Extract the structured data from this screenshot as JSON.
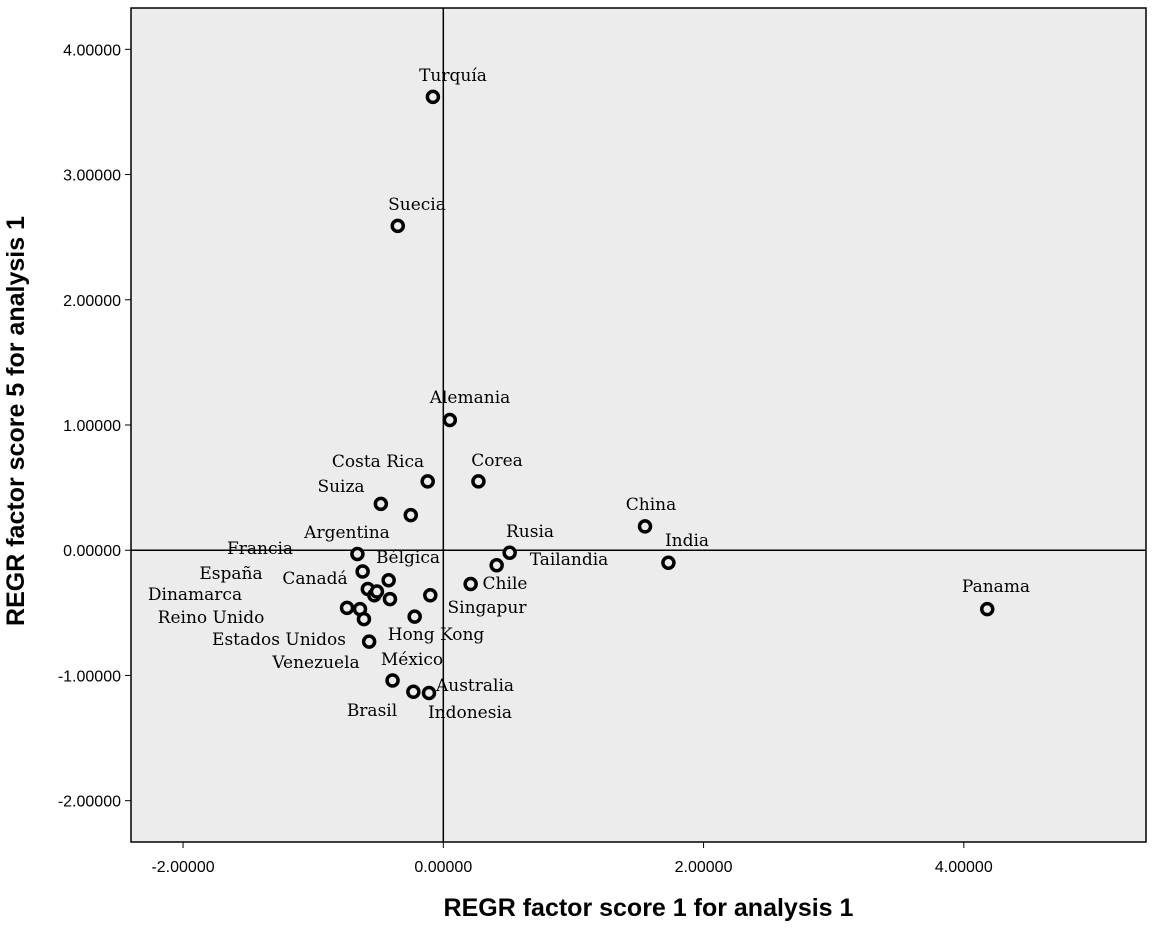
{
  "chart_data": {
    "type": "scatter",
    "title": "",
    "xlabel": "REGR factor score   1 for analysis 1",
    "ylabel": "REGR factor score   5 for analysis 1",
    "xlim": [
      -2.4,
      5.4
    ],
    "ylim": [
      -2.33,
      4.33
    ],
    "x_ticks": [
      -2,
      0,
      2,
      4
    ],
    "y_ticks": [
      -2,
      -1,
      0,
      1,
      2,
      3,
      4
    ],
    "x_tick_labels": [
      "-2.00000",
      "0.00000",
      "2.00000",
      "4.00000"
    ],
    "y_tick_labels": [
      "-2.00000",
      "-1.00000",
      "0.00000",
      "1.00000",
      "2.00000",
      "3.00000",
      "4.00000"
    ],
    "reference_lines": {
      "x": 0,
      "y": 0
    },
    "grid": false,
    "colors": {
      "plot_background": "#ececec",
      "marker": "#000000",
      "axis": "#000000"
    },
    "points": [
      {
        "label": "Turquía",
        "x": -0.08,
        "y": 3.62
      },
      {
        "label": "Suecia",
        "x": -0.35,
        "y": 2.59
      },
      {
        "label": "Alemania",
        "x": 0.05,
        "y": 1.04
      },
      {
        "label": "Costa Rica",
        "x": -0.12,
        "y": 0.55
      },
      {
        "label": "Corea",
        "x": 0.27,
        "y": 0.55
      },
      {
        "label": "Suiza",
        "x": -0.48,
        "y": 0.37
      },
      {
        "label": "",
        "x": -0.25,
        "y": 0.28
      },
      {
        "label": "China",
        "x": 1.55,
        "y": 0.19
      },
      {
        "label": "India",
        "x": 1.73,
        "y": -0.1
      },
      {
        "label": "Argentina",
        "x": -0.66,
        "y": -0.03
      },
      {
        "label": "Francia",
        "x": -0.62,
        "y": -0.17
      },
      {
        "label": "Bélgica",
        "x": -0.42,
        "y": -0.24
      },
      {
        "label": "Rusia",
        "x": 0.51,
        "y": -0.02
      },
      {
        "label": "Tailandia",
        "x": 0.41,
        "y": -0.12
      },
      {
        "label": "Chile",
        "x": 0.21,
        "y": -0.27
      },
      {
        "label": "España",
        "x": -0.58,
        "y": -0.31
      },
      {
        "label": "Canadá",
        "x": -0.53,
        "y": -0.36
      },
      {
        "label": "",
        "x": -0.51,
        "y": -0.33
      },
      {
        "label": "",
        "x": -0.41,
        "y": -0.39
      },
      {
        "label": "Singapur",
        "x": -0.1,
        "y": -0.36
      },
      {
        "label": "Dinamarca",
        "x": -0.74,
        "y": -0.46
      },
      {
        "label": "",
        "x": -0.64,
        "y": -0.47
      },
      {
        "label": "Reino Unido",
        "x": -0.61,
        "y": -0.55
      },
      {
        "label": "Hong Kong",
        "x": -0.22,
        "y": -0.53
      },
      {
        "label": "Estados Unidos",
        "x": -0.57,
        "y": -0.73
      },
      {
        "label": "México",
        "x": -0.39,
        "y": -1.04
      },
      {
        "label": "Venezuela",
        "x": -0.23,
        "y": -1.13
      },
      {
        "label": "Australia",
        "x": -0.11,
        "y": -1.14
      },
      {
        "label": "Panama",
        "x": 4.18,
        "y": -0.47
      }
    ],
    "extra_labels": [
      {
        "label": "Brasil"
      },
      {
        "label": "Indonesia"
      }
    ]
  }
}
